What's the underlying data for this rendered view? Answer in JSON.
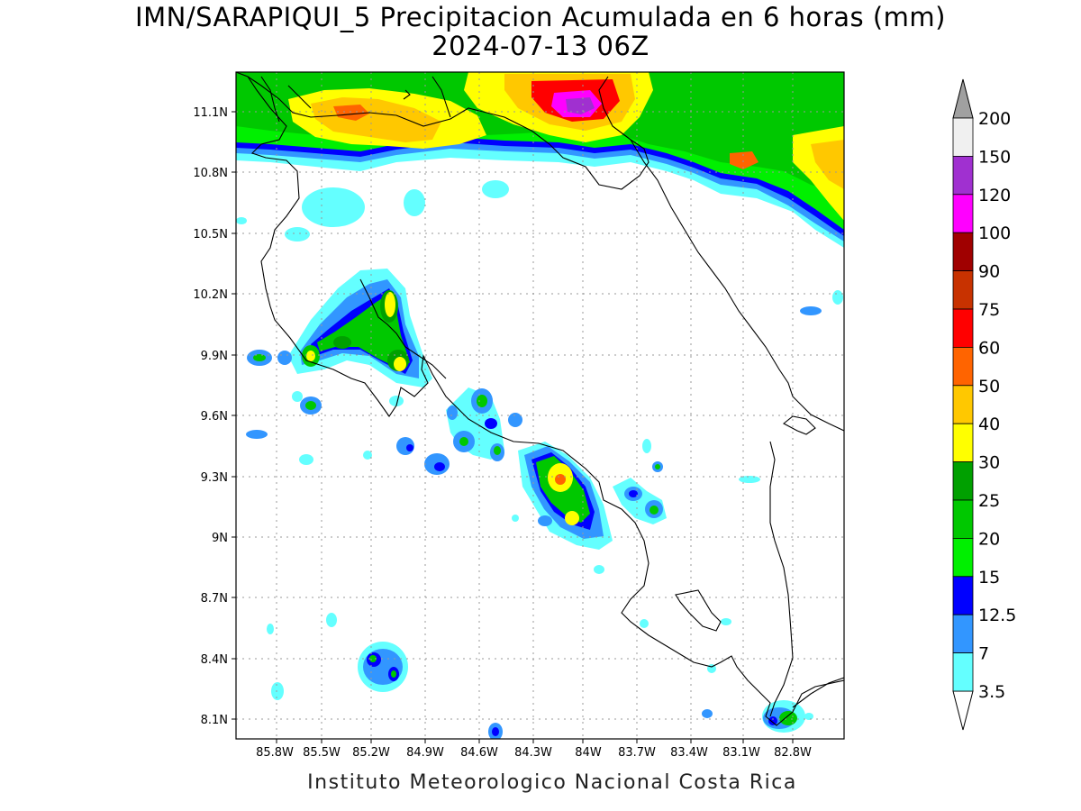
{
  "title": {
    "line1": "IMN/SARAPIQUI_5 Precipitacion Acumulada en 6 horas (mm)",
    "line2": "2024-07-13 06Z"
  },
  "footer": "Instituto Meteorologico Nacional Costa Rica",
  "map": {
    "lat_labels": [
      "11.1N",
      "10.8N",
      "10.5N",
      "10.2N",
      "9.9N",
      "9.6N",
      "9.3N",
      "9N",
      "8.7N",
      "8.4N",
      "8.1N"
    ],
    "lon_labels": [
      "85.8W",
      "85.5W",
      "85.2W",
      "84.9W",
      "84.6W",
      "84.3W",
      "84W",
      "83.7W",
      "83.4W",
      "83.1W",
      "82.8W"
    ],
    "gridlines": "dotted"
  },
  "legend": {
    "labels": [
      "200",
      "150",
      "120",
      "100",
      "90",
      "75",
      "60",
      "50",
      "40",
      "30",
      "25",
      "20",
      "15",
      "12.5",
      "7",
      "3.5"
    ],
    "colors": [
      "#f0f0f0",
      "#a030d0",
      "#ff00ff",
      "#a00000",
      "#c83200",
      "#ff0000",
      "#ff6400",
      "#ffc800",
      "#ffff00",
      "#00a000",
      "#00c800",
      "#00f000",
      "#0000ff",
      "#3296ff",
      "#64ffff"
    ]
  }
}
